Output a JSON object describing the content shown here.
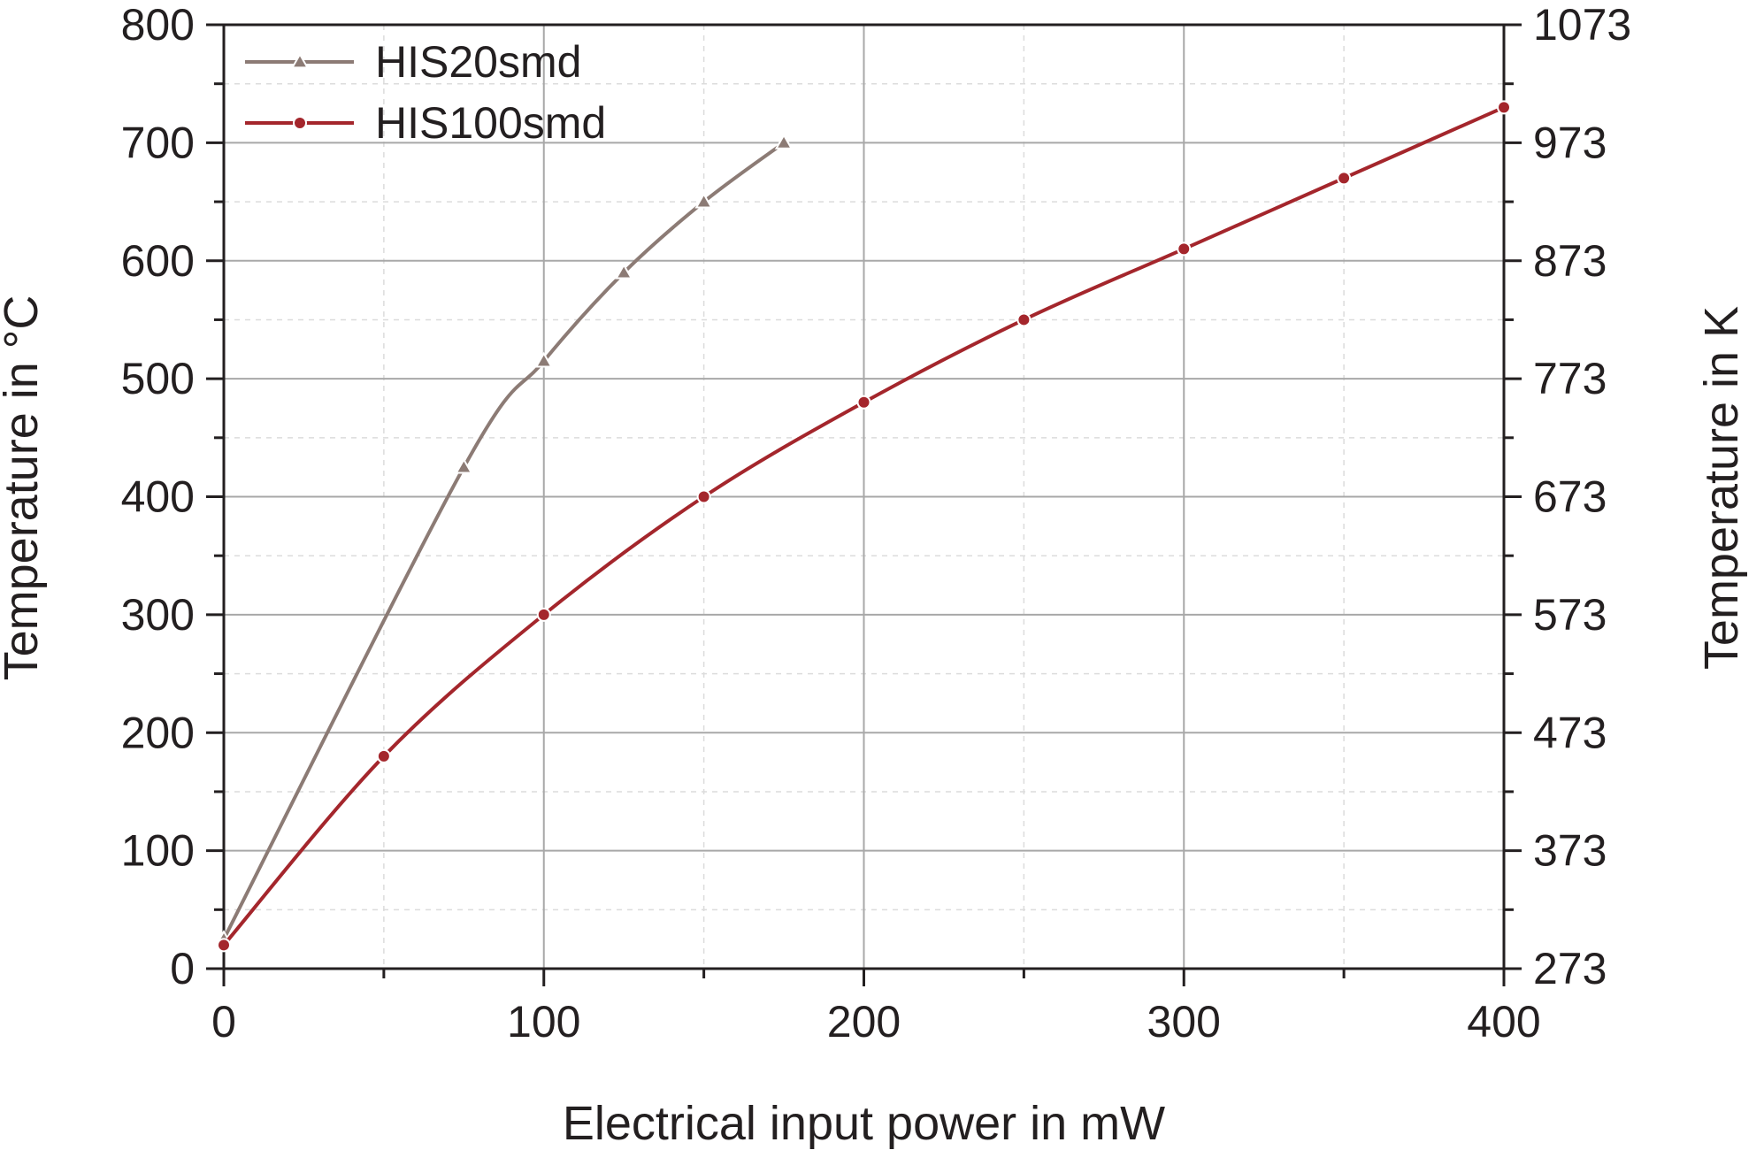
{
  "chart_data": {
    "type": "line",
    "xlabel": "Electrical input power in mW",
    "ylabel": "Temperature in °C",
    "y2label": "Temperature in K",
    "xlim": [
      0,
      400
    ],
    "ylim": [
      0,
      800
    ],
    "y2lim": [
      273,
      1073
    ],
    "x_ticks": [
      "0",
      "100",
      "200",
      "300",
      "400"
    ],
    "y_ticks": [
      "0",
      "100",
      "200",
      "300",
      "400",
      "500",
      "600",
      "700",
      "800"
    ],
    "y2_ticks": [
      "273",
      "373",
      "473",
      "573",
      "673",
      "773",
      "873",
      "973",
      "1073"
    ],
    "grid": true,
    "legend_position": "top-left",
    "series": [
      {
        "name": "HIS20smd",
        "marker": "triangle",
        "color": "#8c7b75",
        "x": [
          0,
          75,
          100,
          125,
          150,
          175
        ],
        "y": [
          25,
          425,
          515,
          590,
          650,
          700
        ]
      },
      {
        "name": "HIS100smd",
        "marker": "circle",
        "color": "#a4262c",
        "x": [
          0,
          50,
          100,
          150,
          200,
          250,
          300,
          350,
          400
        ],
        "y": [
          20,
          180,
          300,
          400,
          480,
          550,
          610,
          670,
          730
        ]
      }
    ]
  }
}
